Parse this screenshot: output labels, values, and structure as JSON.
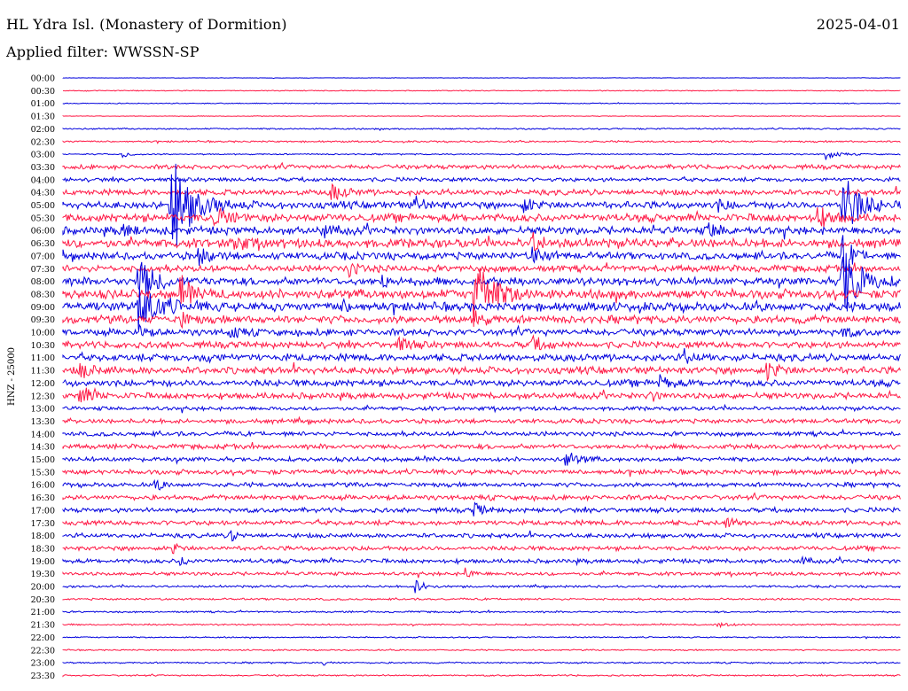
{
  "header": {
    "station": "HL Ydra Isl. (Monastery of Dormition)",
    "date": "2025-04-01",
    "filter": "Applied filter: WWSSN-SP"
  },
  "chart_data": {
    "type": "line",
    "title": "HL Ydra Isl. (Monastery of Dormition)",
    "subtitle": "Applied filter: WWSSN-SP",
    "ylabel": "HNZ - 25000",
    "xlabel": "",
    "colors": {
      "even_rows": "#0000dd",
      "odd_rows": "#ff1744"
    },
    "row_labels": [
      "00:00",
      "00:30",
      "01:00",
      "01:30",
      "02:00",
      "02:30",
      "03:00",
      "03:30",
      "04:00",
      "04:30",
      "05:00",
      "05:30",
      "06:00",
      "06:30",
      "07:00",
      "07:30",
      "08:00",
      "08:30",
      "09:00",
      "09:30",
      "10:00",
      "10:30",
      "11:00",
      "11:30",
      "12:00",
      "12:30",
      "13:00",
      "13:30",
      "14:00",
      "14:30",
      "15:00",
      "15:30",
      "16:00",
      "16:30",
      "17:00",
      "17:30",
      "18:00",
      "18:30",
      "19:00",
      "19:30",
      "20:00",
      "20:30",
      "21:00",
      "21:30",
      "22:00",
      "22:30",
      "23:00",
      "23:30"
    ],
    "noise_level": [
      0.2,
      0.4,
      0.4,
      0.3,
      0.7,
      0.8,
      0.6,
      2.0,
      1.8,
      2.5,
      3.2,
      3.6,
      3.5,
      4.0,
      3.3,
      3.0,
      3.5,
      4.2,
      4.0,
      3.5,
      3.0,
      3.0,
      3.2,
      3.2,
      3.0,
      2.8,
      1.8,
      2.0,
      2.0,
      2.2,
      2.0,
      2.2,
      2.0,
      2.2,
      2.1,
      2.2,
      2.0,
      2.0,
      1.9,
      1.6,
      1.0,
      0.9,
      0.8,
      0.7,
      0.6,
      0.6,
      0.7,
      0.7
    ],
    "events": [
      {
        "row": 6,
        "x": 0.07,
        "amp": 5,
        "w": 0.004
      },
      {
        "row": 6,
        "x": 0.91,
        "amp": 7,
        "w": 0.006
      },
      {
        "row": 9,
        "x": 0.32,
        "amp": 9,
        "w": 0.008
      },
      {
        "row": 10,
        "x": 0.13,
        "amp": 55,
        "w": 0.012
      },
      {
        "row": 10,
        "x": 0.42,
        "amp": 9,
        "w": 0.006
      },
      {
        "row": 10,
        "x": 0.55,
        "amp": 8,
        "w": 0.006
      },
      {
        "row": 10,
        "x": 0.78,
        "amp": 7,
        "w": 0.005
      },
      {
        "row": 10,
        "x": 0.93,
        "amp": 40,
        "w": 0.01
      },
      {
        "row": 11,
        "x": 0.18,
        "amp": 12,
        "w": 0.008
      },
      {
        "row": 11,
        "x": 0.9,
        "amp": 12,
        "w": 0.008
      },
      {
        "row": 12,
        "x": 0.07,
        "amp": 9,
        "w": 0.006
      },
      {
        "row": 12,
        "x": 0.31,
        "amp": 8,
        "w": 0.006
      },
      {
        "row": 12,
        "x": 0.77,
        "amp": 8,
        "w": 0.008
      },
      {
        "row": 13,
        "x": 0.2,
        "amp": 10,
        "w": 0.008
      },
      {
        "row": 13,
        "x": 0.56,
        "amp": 12,
        "w": 0.006
      },
      {
        "row": 14,
        "x": 0.16,
        "amp": 10,
        "w": 0.007
      },
      {
        "row": 14,
        "x": 0.56,
        "amp": 10,
        "w": 0.006
      },
      {
        "row": 14,
        "x": 0.93,
        "amp": 30,
        "w": 0.005
      },
      {
        "row": 15,
        "x": 0.34,
        "amp": 8,
        "w": 0.006
      },
      {
        "row": 16,
        "x": 0.09,
        "amp": 25,
        "w": 0.01
      },
      {
        "row": 16,
        "x": 0.38,
        "amp": 8,
        "w": 0.005
      },
      {
        "row": 16,
        "x": 0.93,
        "amp": 45,
        "w": 0.01
      },
      {
        "row": 17,
        "x": 0.14,
        "amp": 20,
        "w": 0.006
      },
      {
        "row": 17,
        "x": 0.49,
        "amp": 40,
        "w": 0.012
      },
      {
        "row": 18,
        "x": 0.09,
        "amp": 28,
        "w": 0.012
      },
      {
        "row": 18,
        "x": 0.33,
        "amp": 8,
        "w": 0.005
      },
      {
        "row": 19,
        "x": 0.14,
        "amp": 10,
        "w": 0.005
      },
      {
        "row": 19,
        "x": 0.49,
        "amp": 10,
        "w": 0.006
      },
      {
        "row": 20,
        "x": 0.09,
        "amp": 9,
        "w": 0.004
      },
      {
        "row": 20,
        "x": 0.2,
        "amp": 10,
        "w": 0.004
      },
      {
        "row": 20,
        "x": 0.93,
        "amp": 8,
        "w": 0.004
      },
      {
        "row": 21,
        "x": 0.4,
        "amp": 8,
        "w": 0.006
      },
      {
        "row": 21,
        "x": 0.56,
        "amp": 9,
        "w": 0.006
      },
      {
        "row": 22,
        "x": 0.17,
        "amp": 8,
        "w": 0.004
      },
      {
        "row": 22,
        "x": 0.74,
        "amp": 7,
        "w": 0.006
      },
      {
        "row": 23,
        "x": 0.02,
        "amp": 8,
        "w": 0.008
      },
      {
        "row": 23,
        "x": 0.84,
        "amp": 12,
        "w": 0.006
      },
      {
        "row": 24,
        "x": 0.71,
        "amp": 10,
        "w": 0.006
      },
      {
        "row": 25,
        "x": 0.02,
        "amp": 10,
        "w": 0.008
      },
      {
        "row": 25,
        "x": 0.7,
        "amp": 7,
        "w": 0.004
      },
      {
        "row": 30,
        "x": 0.6,
        "amp": 10,
        "w": 0.007
      },
      {
        "row": 32,
        "x": 0.11,
        "amp": 8,
        "w": 0.004
      },
      {
        "row": 34,
        "x": 0.49,
        "amp": 8,
        "w": 0.006
      },
      {
        "row": 35,
        "x": 0.79,
        "amp": 10,
        "w": 0.004
      },
      {
        "row": 36,
        "x": 0.2,
        "amp": 7,
        "w": 0.004
      },
      {
        "row": 37,
        "x": 0.13,
        "amp": 7,
        "w": 0.004
      },
      {
        "row": 38,
        "x": 0.14,
        "amp": 6,
        "w": 0.004
      },
      {
        "row": 38,
        "x": 0.88,
        "amp": 6,
        "w": 0.004
      },
      {
        "row": 39,
        "x": 0.48,
        "amp": 6,
        "w": 0.004
      },
      {
        "row": 40,
        "x": 0.42,
        "amp": 8,
        "w": 0.006
      },
      {
        "row": 43,
        "x": 0.78,
        "amp": 4,
        "w": 0.006
      },
      {
        "row": 46,
        "x": 0.31,
        "amp": 3,
        "w": 0.004
      }
    ]
  }
}
